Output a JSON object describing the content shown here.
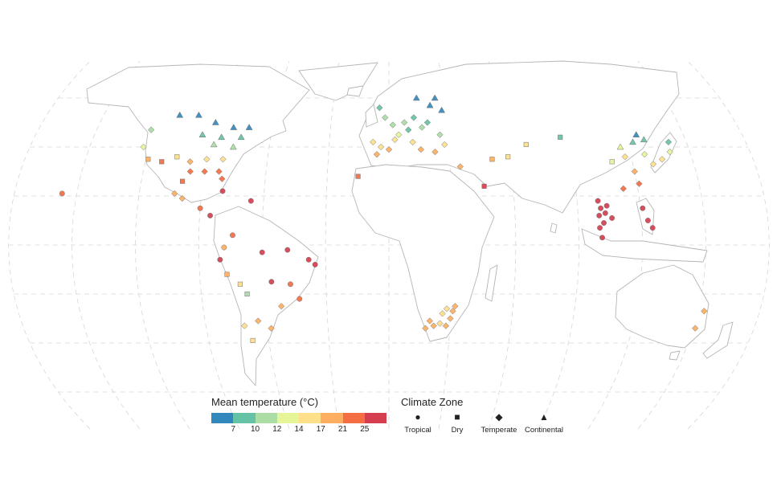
{
  "map": {
    "projection": "world map (pseudo-cylindrical)",
    "land_style": "white countries with grey borders",
    "graticule": "dashed grey lines"
  },
  "legend_temperature": {
    "title": "Mean temperature (°C)",
    "ticks": [
      "7",
      "10",
      "12",
      "14",
      "17",
      "21",
      "25"
    ],
    "colors": [
      "#3288bd",
      "#66c2a5",
      "#abdda4",
      "#e6f598",
      "#fee08b",
      "#fdae61",
      "#f46d43",
      "#d53e4f"
    ]
  },
  "legend_climate": {
    "title": "Climate Zone",
    "items": [
      {
        "label": "Tropical",
        "shape": "circle-icon"
      },
      {
        "label": "Dry",
        "shape": "square-icon"
      },
      {
        "label": "Temperate",
        "shape": "diamond-icon"
      },
      {
        "label": "Continental",
        "shape": "triangle-icon"
      }
    ]
  },
  "stations": [
    {
      "lon": -110,
      "lat": 53,
      "zone": "Continental",
      "temp": 5
    },
    {
      "lon": -100,
      "lat": 53,
      "zone": "Continental",
      "temp": 5
    },
    {
      "lon": -90,
      "lat": 50,
      "zone": "Continental",
      "temp": 6
    },
    {
      "lon": -80,
      "lat": 48,
      "zone": "Continental",
      "temp": 6
    },
    {
      "lon": -72,
      "lat": 48,
      "zone": "Continental",
      "temp": 6
    },
    {
      "lon": -95,
      "lat": 45,
      "zone": "Continental",
      "temp": 8
    },
    {
      "lon": -85,
      "lat": 44,
      "zone": "Continental",
      "temp": 9
    },
    {
      "lon": -75,
      "lat": 44,
      "zone": "Continental",
      "temp": 8
    },
    {
      "lon": -88,
      "lat": 41,
      "zone": "Continental",
      "temp": 10
    },
    {
      "lon": -78,
      "lat": 40,
      "zone": "Continental",
      "temp": 11
    },
    {
      "lon": -122,
      "lat": 47,
      "zone": "Temperate",
      "temp": 11
    },
    {
      "lon": -123,
      "lat": 40,
      "zone": "Temperate",
      "temp": 13
    },
    {
      "lon": -119,
      "lat": 35,
      "zone": "Dry",
      "temp": 17
    },
    {
      "lon": -112,
      "lat": 34,
      "zone": "Dry",
      "temp": 21
    },
    {
      "lon": -105,
      "lat": 36,
      "zone": "Dry",
      "temp": 14
    },
    {
      "lon": -98,
      "lat": 34,
      "zone": "Temperate",
      "temp": 17
    },
    {
      "lon": -90,
      "lat": 35,
      "zone": "Temperate",
      "temp": 16
    },
    {
      "lon": -82,
      "lat": 35,
      "zone": "Temperate",
      "temp": 15
    },
    {
      "lon": -97,
      "lat": 30,
      "zone": "Temperate",
      "temp": 21
    },
    {
      "lon": -90,
      "lat": 30,
      "zone": "Temperate",
      "temp": 21
    },
    {
      "lon": -83,
      "lat": 30,
      "zone": "Temperate",
      "temp": 21
    },
    {
      "lon": -81,
      "lat": 27,
      "zone": "Temperate",
      "temp": 23
    },
    {
      "lon": -100,
      "lat": 26,
      "zone": "Dry",
      "temp": 22
    },
    {
      "lon": -103,
      "lat": 21,
      "zone": "Temperate",
      "temp": 18
    },
    {
      "lon": -99,
      "lat": 19,
      "zone": "Temperate",
      "temp": 17
    },
    {
      "lon": -90,
      "lat": 15,
      "zone": "Tropical",
      "temp": 24
    },
    {
      "lon": -80,
      "lat": 22,
      "zone": "Tropical",
      "temp": 25
    },
    {
      "lon": -85,
      "lat": 12,
      "zone": "Tropical",
      "temp": 26
    },
    {
      "lon": -66,
      "lat": 18,
      "zone": "Tropical",
      "temp": 26
    },
    {
      "lon": -157,
      "lat": 21,
      "zone": "Tropical",
      "temp": 24
    },
    {
      "lon": -74,
      "lat": 4,
      "zone": "Tropical",
      "temp": 21
    },
    {
      "lon": -78,
      "lat": -1,
      "zone": "Tropical",
      "temp": 17
    },
    {
      "lon": -80,
      "lat": -6,
      "zone": "Tropical",
      "temp": 26
    },
    {
      "lon": -77,
      "lat": -12,
      "zone": "Dry",
      "temp": 19
    },
    {
      "lon": -71,
      "lat": -16,
      "zone": "Dry",
      "temp": 14
    },
    {
      "lon": -68,
      "lat": -20,
      "zone": "Dry",
      "temp": 10
    },
    {
      "lon": -60,
      "lat": -3,
      "zone": "Tropical",
      "temp": 27
    },
    {
      "lon": -48,
      "lat": -2,
      "zone": "Tropical",
      "temp": 26
    },
    {
      "lon": -38,
      "lat": -6,
      "zone": "Tropical",
      "temp": 26
    },
    {
      "lon": -35,
      "lat": -8,
      "zone": "Tropical",
      "temp": 26
    },
    {
      "lon": -47,
      "lat": -16,
      "zone": "Tropical",
      "temp": 22
    },
    {
      "lon": -43,
      "lat": -22,
      "zone": "Tropical",
      "temp": 23
    },
    {
      "lon": -56,
      "lat": -15,
      "zone": "Tropical",
      "temp": 26
    },
    {
      "lon": -52,
      "lat": -25,
      "zone": "Temperate",
      "temp": 19
    },
    {
      "lon": -58,
      "lat": -34,
      "zone": "Temperate",
      "temp": 17
    },
    {
      "lon": -64,
      "lat": -31,
      "zone": "Temperate",
      "temp": 18
    },
    {
      "lon": -71,
      "lat": -33,
      "zone": "Temperate",
      "temp": 15
    },
    {
      "lon": -68,
      "lat": -39,
      "zone": "Dry",
      "temp": 14
    },
    {
      "lon": -5,
      "lat": 56,
      "zone": "Temperate",
      "temp": 9
    },
    {
      "lon": -2,
      "lat": 52,
      "zone": "Temperate",
      "temp": 10
    },
    {
      "lon": 2,
      "lat": 49,
      "zone": "Temperate",
      "temp": 11
    },
    {
      "lon": 8,
      "lat": 50,
      "zone": "Temperate",
      "temp": 10
    },
    {
      "lon": 13,
      "lat": 52,
      "zone": "Temperate",
      "temp": 9
    },
    {
      "lon": 20,
      "lat": 50,
      "zone": "Temperate",
      "temp": 8
    },
    {
      "lon": 10,
      "lat": 47,
      "zone": "Temperate",
      "temp": 9
    },
    {
      "lon": 17,
      "lat": 48,
      "zone": "Temperate",
      "temp": 10
    },
    {
      "lon": 5,
      "lat": 45,
      "zone": "Temperate",
      "temp": 12
    },
    {
      "lon": 26,
      "lat": 45,
      "zone": "Temperate",
      "temp": 11
    },
    {
      "lon": 15,
      "lat": 60,
      "zone": "Continental",
      "temp": 5
    },
    {
      "lon": 22,
      "lat": 57,
      "zone": "Continental",
      "temp": 6
    },
    {
      "lon": 25,
      "lat": 60,
      "zone": "Continental",
      "temp": 5
    },
    {
      "lon": 28,
      "lat": 55,
      "zone": "Continental",
      "temp": 6
    },
    {
      "lon": -8,
      "lat": 42,
      "zone": "Temperate",
      "temp": 14
    },
    {
      "lon": -4,
      "lat": 40,
      "zone": "Temperate",
      "temp": 15
    },
    {
      "lon": -6,
      "lat": 37,
      "zone": "Temperate",
      "temp": 18
    },
    {
      "lon": 0,
      "lat": 39,
      "zone": "Temperate",
      "temp": 18
    },
    {
      "lon": 3,
      "lat": 43,
      "zone": "Temperate",
      "temp": 15
    },
    {
      "lon": 12,
      "lat": 42,
      "zone": "Temperate",
      "temp": 16
    },
    {
      "lon": 16,
      "lat": 39,
      "zone": "Temperate",
      "temp": 18
    },
    {
      "lon": 23,
      "lat": 38,
      "zone": "Temperate",
      "temp": 18
    },
    {
      "lon": 28,
      "lat": 41,
      "zone": "Temperate",
      "temp": 14
    },
    {
      "lon": -15,
      "lat": 28,
      "zone": "Dry",
      "temp": 21
    },
    {
      "lon": 35,
      "lat": 32,
      "zone": "Temperate",
      "temp": 20
    },
    {
      "lon": 46,
      "lat": 24,
      "zone": "Dry",
      "temp": 26
    },
    {
      "lon": 51,
      "lat": 35,
      "zone": "Dry",
      "temp": 17
    },
    {
      "lon": 59,
      "lat": 36,
      "zone": "Dry",
      "temp": 16
    },
    {
      "lon": 69,
      "lat": 41,
      "zone": "Dry",
      "temp": 15
    },
    {
      "lon": 87,
      "lat": 44,
      "zone": "Dry",
      "temp": 8
    },
    {
      "lon": 116,
      "lat": 40,
      "zone": "Continental",
      "temp": 12
    },
    {
      "lon": 123,
      "lat": 42,
      "zone": "Continental",
      "temp": 9
    },
    {
      "lon": 126,
      "lat": 45,
      "zone": "Continental",
      "temp": 5
    },
    {
      "lon": 129,
      "lat": 43,
      "zone": "Continental",
      "temp": 7
    },
    {
      "lon": 127,
      "lat": 37,
      "zone": "Temperate",
      "temp": 13
    },
    {
      "lon": 130,
      "lat": 33,
      "zone": "Temperate",
      "temp": 16
    },
    {
      "lon": 135,
      "lat": 35,
      "zone": "Temperate",
      "temp": 15
    },
    {
      "lon": 140,
      "lat": 38,
      "zone": "Temperate",
      "temp": 13
    },
    {
      "lon": 141,
      "lat": 42,
      "zone": "Temperate",
      "temp": 9
    },
    {
      "lon": 117,
      "lat": 36,
      "zone": "Temperate",
      "temp": 14
    },
    {
      "lon": 110,
      "lat": 34,
      "zone": "Dry",
      "temp": 13
    },
    {
      "lon": 120,
      "lat": 30,
      "zone": "Temperate",
      "temp": 17
    },
    {
      "lon": 113,
      "lat": 23,
      "zone": "Temperate",
      "temp": 22
    },
    {
      "lon": 121,
      "lat": 25,
      "zone": "Temperate",
      "temp": 21
    },
    {
      "lon": 100,
      "lat": 18,
      "zone": "Tropical",
      "temp": 26
    },
    {
      "lon": 101,
      "lat": 15,
      "zone": "Tropical",
      "temp": 27
    },
    {
      "lon": 104,
      "lat": 16,
      "zone": "Tropical",
      "temp": 27
    },
    {
      "lon": 103,
      "lat": 13,
      "zone": "Tropical",
      "temp": 27
    },
    {
      "lon": 100,
      "lat": 12,
      "zone": "Tropical",
      "temp": 27
    },
    {
      "lon": 106,
      "lat": 11,
      "zone": "Tropical",
      "temp": 27
    },
    {
      "lon": 102,
      "lat": 9,
      "zone": "Tropical",
      "temp": 27
    },
    {
      "lon": 100,
      "lat": 7,
      "zone": "Tropical",
      "temp": 27
    },
    {
      "lon": 121,
      "lat": 15,
      "zone": "Tropical",
      "temp": 27
    },
    {
      "lon": 123,
      "lat": 10,
      "zone": "Tropical",
      "temp": 27
    },
    {
      "lon": 125,
      "lat": 7,
      "zone": "Tropical",
      "temp": 27
    },
    {
      "lon": 101,
      "lat": 3,
      "zone": "Tropical",
      "temp": 27
    },
    {
      "lon": 153,
      "lat": -27,
      "zone": "Temperate",
      "temp": 20
    },
    {
      "lon": 151,
      "lat": -34,
      "zone": "Temperate",
      "temp": 18
    },
    {
      "lon": 18,
      "lat": -34,
      "zone": "Temperate",
      "temp": 17
    },
    {
      "lon": 22,
      "lat": -33,
      "zone": "Temperate",
      "temp": 17
    },
    {
      "lon": 25,
      "lat": -32,
      "zone": "Temperate",
      "temp": 16
    },
    {
      "lon": 28,
      "lat": -33,
      "zone": "Temperate",
      "temp": 18
    },
    {
      "lon": 30,
      "lat": -30,
      "zone": "Temperate",
      "temp": 19
    },
    {
      "lon": 28,
      "lat": -26,
      "zone": "Temperate",
      "temp": 16
    },
    {
      "lon": 31,
      "lat": -27,
      "zone": "Temperate",
      "temp": 18
    },
    {
      "lon": 32,
      "lat": -25,
      "zone": "Temperate",
      "temp": 20
    },
    {
      "lon": 26,
      "lat": -28,
      "zone": "Temperate",
      "temp": 16
    },
    {
      "lon": 20,
      "lat": -31,
      "zone": "Temperate",
      "temp": 17
    }
  ]
}
